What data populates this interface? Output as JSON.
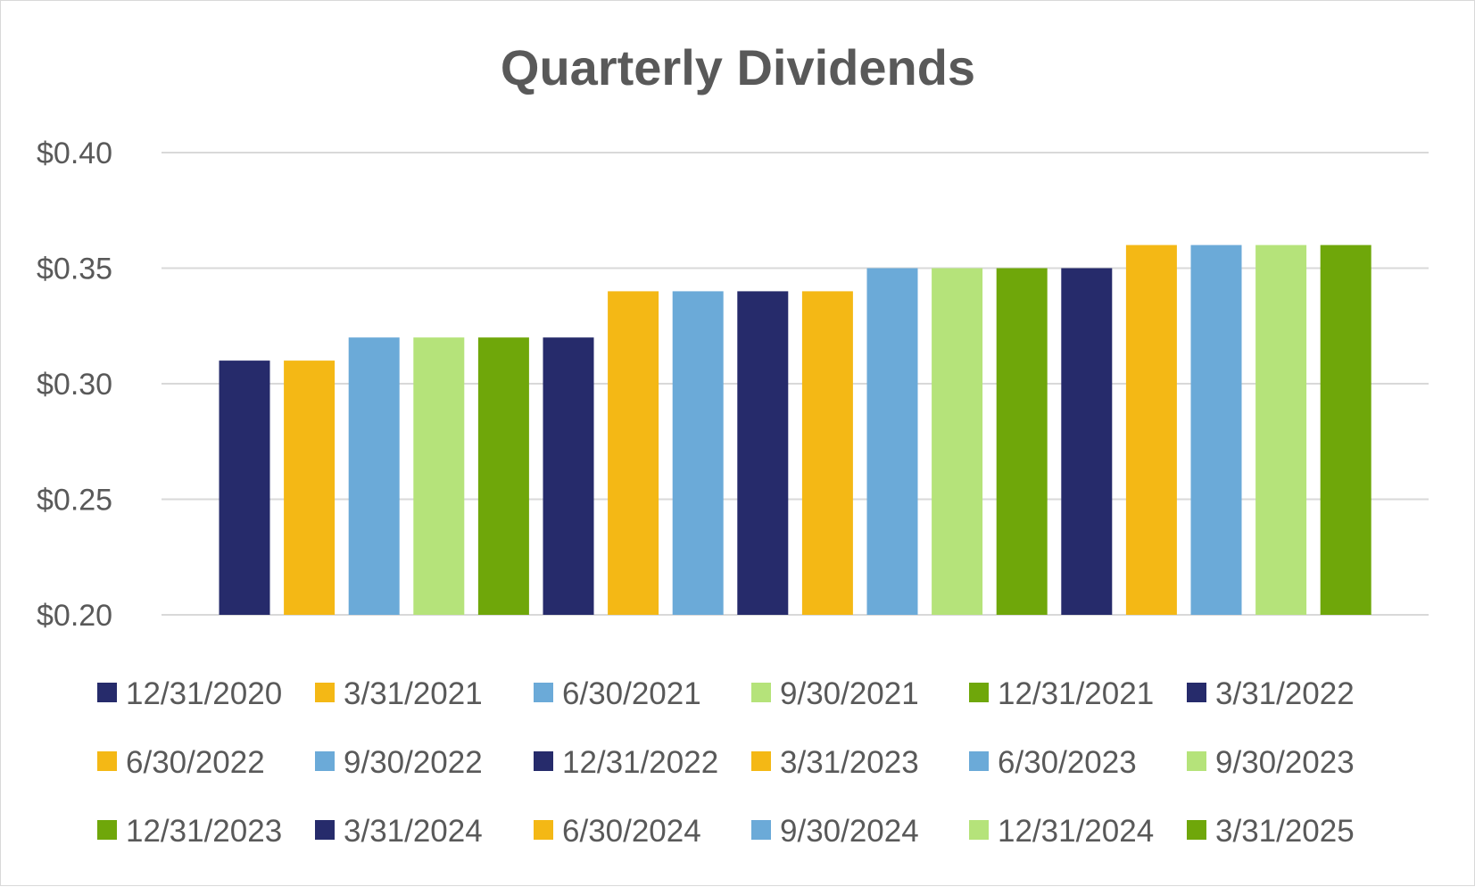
{
  "chart_data": {
    "type": "bar",
    "title": "Quarterly Dividends",
    "xlabel": "",
    "ylabel": "",
    "ylim": [
      0.2,
      0.4
    ],
    "yticks": [
      "$0.20",
      "$0.25",
      "$0.30",
      "$0.35",
      "$0.40"
    ],
    "ytick_values": [
      0.2,
      0.25,
      0.3,
      0.35,
      0.4
    ],
    "grid": true,
    "legend_position": "bottom",
    "series": [
      {
        "name": "12/31/2020",
        "value": 0.31,
        "color": "#262B6B"
      },
      {
        "name": "3/31/2021",
        "value": 0.31,
        "color": "#F4B815"
      },
      {
        "name": "6/30/2021",
        "value": 0.32,
        "color": "#6BAAD8"
      },
      {
        "name": "9/30/2021",
        "value": 0.32,
        "color": "#B5E37A"
      },
      {
        "name": "12/31/2021",
        "value": 0.32,
        "color": "#6FA70A"
      },
      {
        "name": "3/31/2022",
        "value": 0.32,
        "color": "#262B6B"
      },
      {
        "name": "6/30/2022",
        "value": 0.34,
        "color": "#F4B815"
      },
      {
        "name": "9/30/2022",
        "value": 0.34,
        "color": "#6BAAD8"
      },
      {
        "name": "12/31/2022",
        "value": 0.34,
        "color": "#262B6B"
      },
      {
        "name": "3/31/2023",
        "value": 0.34,
        "color": "#F4B815"
      },
      {
        "name": "6/30/2023",
        "value": 0.35,
        "color": "#6BAAD8"
      },
      {
        "name": "9/30/2023",
        "value": 0.35,
        "color": "#B5E37A"
      },
      {
        "name": "12/31/2023",
        "value": 0.35,
        "color": "#6FA70A"
      },
      {
        "name": "3/31/2024",
        "value": 0.35,
        "color": "#262B6B"
      },
      {
        "name": "6/30/2024",
        "value": 0.36,
        "color": "#F4B815"
      },
      {
        "name": "9/30/2024",
        "value": 0.36,
        "color": "#6BAAD8"
      },
      {
        "name": "12/31/2024",
        "value": 0.36,
        "color": "#B5E37A"
      },
      {
        "name": "3/31/2025",
        "value": 0.36,
        "color": "#6FA70A"
      }
    ]
  }
}
